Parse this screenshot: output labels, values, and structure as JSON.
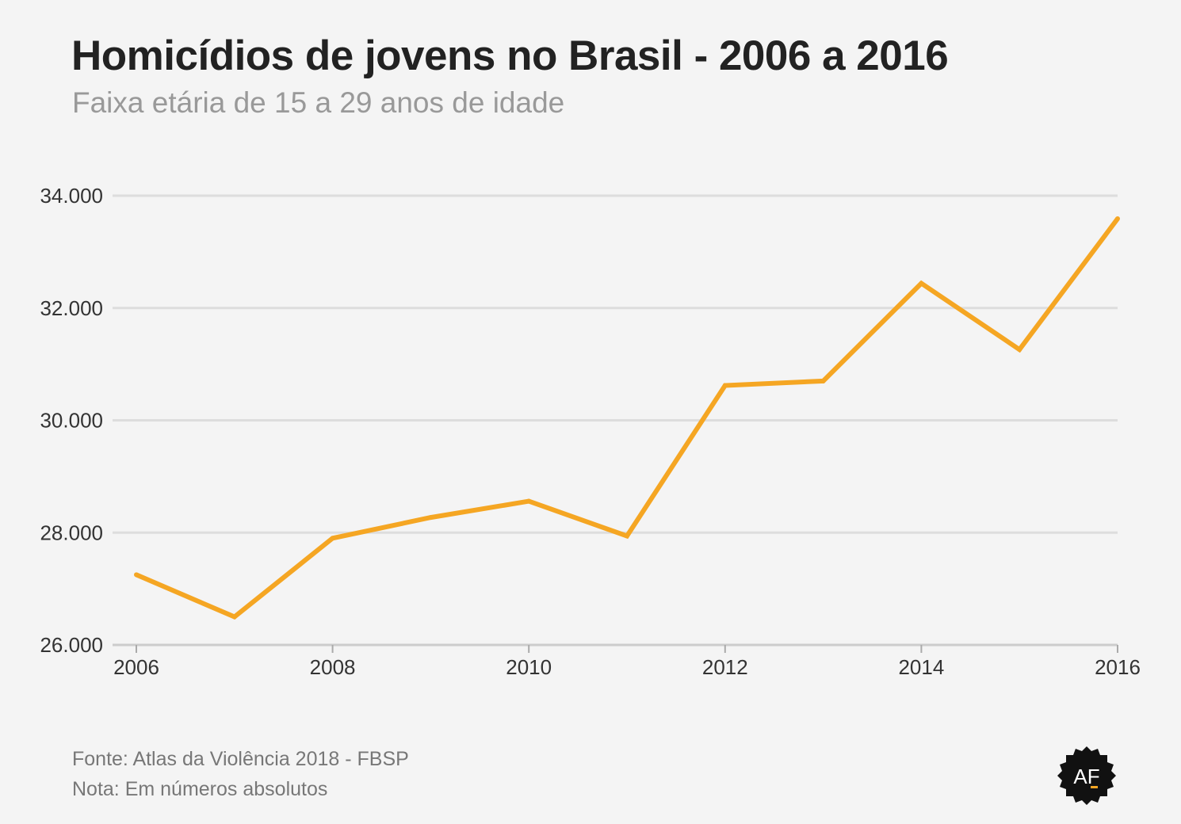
{
  "title": "Homicídios de jovens no Brasil - 2006 a 2016",
  "subtitle": "Faixa etária de 15 a 29 anos de idade",
  "footer": {
    "source": "Fonte: Atlas da Violência 2018 - FBSP",
    "note": "Nota: Em números absolutos"
  },
  "logo": {
    "text": "AF",
    "icon": "af-badge-logo"
  },
  "colors": {
    "background": "#f4f4f4",
    "line": "#f5a623",
    "grid": "#dddddd",
    "title": "#222222",
    "subtitle": "#999999"
  },
  "chart_data": {
    "type": "line",
    "title": "Homicídios de jovens no Brasil - 2006 a 2016",
    "subtitle": "Faixa etária de 15 a 29 anos de idade",
    "xlabel": "",
    "ylabel": "",
    "x": [
      2006,
      2007,
      2008,
      2009,
      2010,
      2011,
      2012,
      2013,
      2014,
      2015,
      2016
    ],
    "series": [
      {
        "values": [
          27250,
          26500,
          27900,
          28270,
          28560,
          27940,
          30620,
          30700,
          32440,
          31260,
          33590
        ]
      }
    ],
    "xlim": [
      2006,
      2016
    ],
    "ylim": [
      26000,
      34000
    ],
    "x_ticks": [
      2006,
      2008,
      2010,
      2012,
      2014,
      2016
    ],
    "x_tick_labels": [
      "2006",
      "2008",
      "2010",
      "2012",
      "2014",
      "2016"
    ],
    "y_ticks": [
      26000,
      28000,
      30000,
      32000,
      34000
    ],
    "y_tick_labels": [
      "26.000",
      "28.000",
      "30.000",
      "32.000",
      "34.000"
    ],
    "grid": "horizontal",
    "legend": "none"
  }
}
